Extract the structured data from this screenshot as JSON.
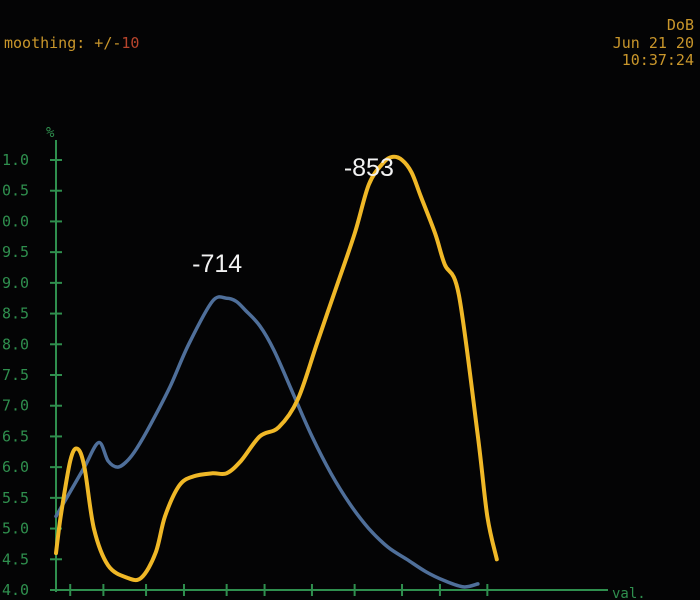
{
  "header": {
    "top_left_fragment": "",
    "smoothing_label": "moothing: +/-",
    "smoothing_value": "10",
    "top_right_line_1": "",
    "top_right_line_2": "DoB",
    "top_right_line_3": "Jun 21 20",
    "top_right_line_4": "10:37:24"
  },
  "colors": {
    "background": "#040405",
    "axis": "#2f8f4e",
    "header_text": "#c9962b",
    "smoothing_value": "#b8442c",
    "series_blue": "#4f6f9a",
    "series_yellow": "#f0b827",
    "peak_label": "#f2f2f2"
  },
  "chart_data": {
    "type": "line",
    "ylabel": "%",
    "xlabel": "val.",
    "ylim": [
      4.0,
      11.5
    ],
    "xlim": [
      0,
      100
    ],
    "yticks": [
      "4.0",
      "4.5",
      "5.0",
      "5.5",
      "6.0",
      "6.5",
      "7.0",
      "7.5",
      "8.0",
      "8.5",
      "9.0",
      "9.5",
      "10.0",
      "10.5",
      "11.0"
    ],
    "ytick_display": [
      "4.0",
      "4.5",
      "5.0",
      "5.5",
      "6.0",
      "6.5",
      "7.0",
      "7.5",
      "8.0",
      "8.5",
      "9.0",
      "9.5",
      "0.0",
      "0.5",
      "1.0"
    ],
    "xticks": [
      3,
      10,
      19,
      27,
      36,
      44,
      54,
      63,
      73,
      81,
      91
    ],
    "grid": false,
    "series": [
      {
        "name": "",
        "color": "#4f6f9a",
        "x": [
          0,
          3,
          6,
          9,
          11,
          13,
          15,
          17,
          20,
          24,
          28,
          33,
          36,
          38,
          40,
          43,
          46,
          50,
          54,
          58,
          62,
          66,
          70,
          74,
          78,
          82,
          86,
          89
        ],
        "y": [
          5.2,
          5.6,
          6.0,
          6.4,
          6.1,
          6.0,
          6.1,
          6.3,
          6.7,
          7.3,
          8.0,
          8.7,
          8.75,
          8.7,
          8.55,
          8.3,
          7.9,
          7.2,
          6.5,
          5.9,
          5.4,
          5.0,
          4.7,
          4.5,
          4.3,
          4.15,
          4.05,
          4.1
        ]
      },
      {
        "name": "",
        "color": "#f0b827",
        "x": [
          0,
          1,
          3,
          4.5,
          6,
          8,
          11,
          15,
          18,
          21,
          23,
          26,
          29,
          33,
          36,
          39,
          43,
          47,
          51,
          55,
          59,
          63,
          66,
          69,
          71,
          73,
          75,
          77,
          80,
          82,
          85,
          89,
          91,
          93
        ],
        "y": [
          4.6,
          5.2,
          6.1,
          6.3,
          6.0,
          5.0,
          4.4,
          4.2,
          4.2,
          4.6,
          5.2,
          5.7,
          5.85,
          5.9,
          5.9,
          6.1,
          6.5,
          6.65,
          7.1,
          8.0,
          8.9,
          9.8,
          10.6,
          10.95,
          11.05,
          11.0,
          10.8,
          10.4,
          9.8,
          9.3,
          8.8,
          6.5,
          5.2,
          4.5
        ]
      }
    ],
    "annotations": [
      {
        "text": "-714",
        "x": 34,
        "y": 9.3,
        "series": 0
      },
      {
        "text": "-853",
        "x": 66,
        "y": 11.5,
        "series": 1
      }
    ]
  }
}
